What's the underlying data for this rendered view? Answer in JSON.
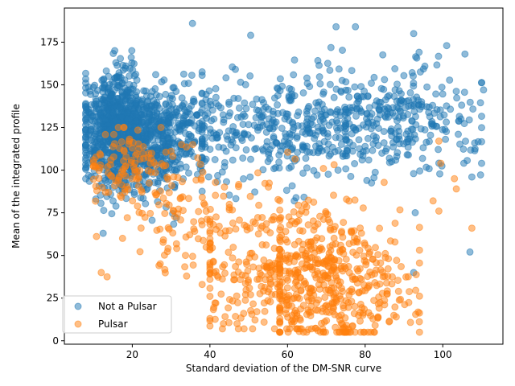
{
  "chart_data": {
    "type": "scatter",
    "title": "",
    "xlabel": "Standard deviation of the DM-SNR curve",
    "ylabel": "Mean of the integrated profile",
    "xlim": [
      2.5,
      115.5
    ],
    "ylim": [
      -2,
      195
    ],
    "xticks": [
      20,
      40,
      60,
      80,
      100
    ],
    "yticks": [
      0,
      25,
      50,
      75,
      100,
      125,
      150,
      175
    ],
    "grid": false,
    "legend_position": "lower-left",
    "series": [
      {
        "name": "Not a Pulsar",
        "color": "#1f77b4",
        "opacity": 0.5,
        "generator": {
          "seed": 12345,
          "clusters": [
            {
              "count": 900,
              "x_center": 16,
              "x_sd": 4.5,
              "x_min": 8,
              "x_max": 30,
              "y_center": 122,
              "y_sd": 17,
              "y_min": 62,
              "y_max": 170
            },
            {
              "count": 450,
              "x_center": 27,
              "x_sd": 6,
              "x_min": 15,
              "x_max": 42,
              "y_center": 120,
              "y_sd": 16,
              "y_min": 65,
              "y_max": 168
            },
            {
              "count": 300,
              "x_center": 55,
              "x_sd": 12,
              "x_min": 38,
              "x_max": 75,
              "y_center": 125,
              "y_sd": 16,
              "y_min": 82,
              "y_max": 182
            },
            {
              "count": 350,
              "x_center": 85,
              "x_sd": 12,
              "x_min": 65,
              "x_max": 110,
              "y_center": 128,
              "y_sd": 16,
              "y_min": 40,
              "y_max": 186
            }
          ]
        },
        "points": [
          {
            "x": 35.5,
            "y": 186
          },
          {
            "x": 77.5,
            "y": 184
          },
          {
            "x": 72.5,
            "y": 184
          },
          {
            "x": 50.5,
            "y": 179
          },
          {
            "x": 92.5,
            "y": 180
          },
          {
            "x": 101,
            "y": 173
          },
          {
            "x": 110.5,
            "y": 147
          },
          {
            "x": 104,
            "y": 121
          },
          {
            "x": 107.5,
            "y": 96
          },
          {
            "x": 107,
            "y": 52
          },
          {
            "x": 92.5,
            "y": 40
          },
          {
            "x": 12.5,
            "y": 63
          }
        ]
      },
      {
        "name": "Pulsar",
        "color": "#ff7f0e",
        "opacity": 0.5,
        "generator": {
          "seed": 67890,
          "clusters": [
            {
              "count": 110,
              "x_center": 18,
              "x_sd": 5,
              "x_min": 10,
              "x_max": 30,
              "y_center": 100,
              "y_sd": 12,
              "y_min": 60,
              "y_max": 125
            },
            {
              "count": 90,
              "x_center": 33,
              "x_sd": 6,
              "x_min": 22,
              "x_max": 45,
              "y_center": 72,
              "y_sd": 18,
              "y_min": 32,
              "y_max": 115
            },
            {
              "count": 280,
              "x_center": 55,
              "x_sd": 11,
              "x_min": 40,
              "x_max": 72,
              "y_center": 45,
              "y_sd": 22,
              "y_min": 7,
              "y_max": 122
            },
            {
              "count": 420,
              "x_center": 72,
              "x_sd": 10,
              "x_min": 58,
              "x_max": 94,
              "y_center": 35,
              "y_sd": 20,
              "y_min": 5,
              "y_max": 120
            }
          ]
        },
        "points": [
          {
            "x": 12,
            "y": 40
          },
          {
            "x": 13.5,
            "y": 37.5
          },
          {
            "x": 17.5,
            "y": 60
          },
          {
            "x": 41,
            "y": 19.5
          },
          {
            "x": 38,
            "y": 33
          },
          {
            "x": 43.5,
            "y": 10
          },
          {
            "x": 47,
            "y": 10
          },
          {
            "x": 88,
            "y": 14
          },
          {
            "x": 93,
            "y": 15.5
          },
          {
            "x": 103,
            "y": 95
          },
          {
            "x": 103.5,
            "y": 89
          },
          {
            "x": 107.5,
            "y": 66
          },
          {
            "x": 97.5,
            "y": 82
          },
          {
            "x": 99,
            "y": 76
          },
          {
            "x": 99,
            "y": 117
          },
          {
            "x": 99.5,
            "y": 104
          }
        ]
      }
    ]
  }
}
